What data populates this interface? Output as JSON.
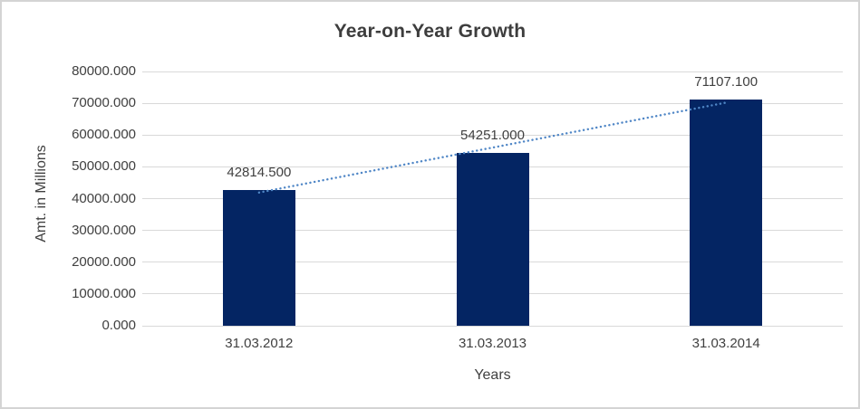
{
  "window": {
    "background_color": "#ffffff",
    "border_color": "#d4d4d4"
  },
  "chart_data": {
    "type": "bar",
    "title": "Year-on-Year Growth",
    "categories": [
      "31.03.2012",
      "31.03.2013",
      "31.03.2014"
    ],
    "values": [
      42814.5,
      54251.0,
      71107.1
    ],
    "data_labels": [
      "42814.500",
      "54251.000",
      "71107.100"
    ],
    "xlabel": "Years",
    "ylabel": "Amt. in Millions",
    "ylim": [
      0,
      80000
    ],
    "ytick_step": 10000,
    "ytick_labels": [
      "0.000",
      "10000.000",
      "20000.000",
      "30000.000",
      "40000.000",
      "50000.000",
      "60000.000",
      "70000.000",
      "80000.000"
    ],
    "grid": true,
    "legend": false,
    "bar_color": "#042563",
    "gridline_color": "#d9d9d9",
    "axis_line_color": "#d9d9d9",
    "text_color": "#404040",
    "title_color": "#3d3d3d",
    "trendline": {
      "type": "linear",
      "style": "dotted",
      "color": "#4f86c6"
    }
  }
}
